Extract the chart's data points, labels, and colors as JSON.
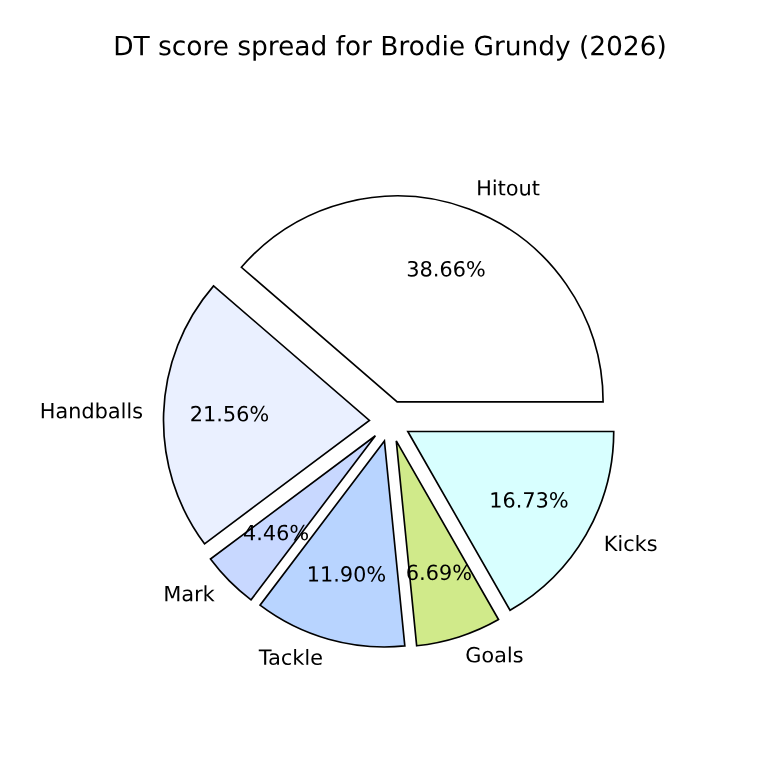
{
  "chart_data": {
    "type": "pie",
    "title": "DT score spread for Brodie Grundy (2026)",
    "categories": [
      "Hitout",
      "Handballs",
      "Mark",
      "Tackle",
      "Goals",
      "Kicks"
    ],
    "values": [
      38.66,
      21.56,
      4.46,
      11.9,
      6.69,
      16.73
    ],
    "colors": [
      "#ffffff",
      "#eaf0ff",
      "#c8d8ff",
      "#b8d4ff",
      "#d0ea8a",
      "#d8ffff"
    ],
    "value_labels": [
      "38.66%",
      "21.56%",
      "4.46%",
      "11.90%",
      "6.69%",
      "16.73%"
    ]
  }
}
